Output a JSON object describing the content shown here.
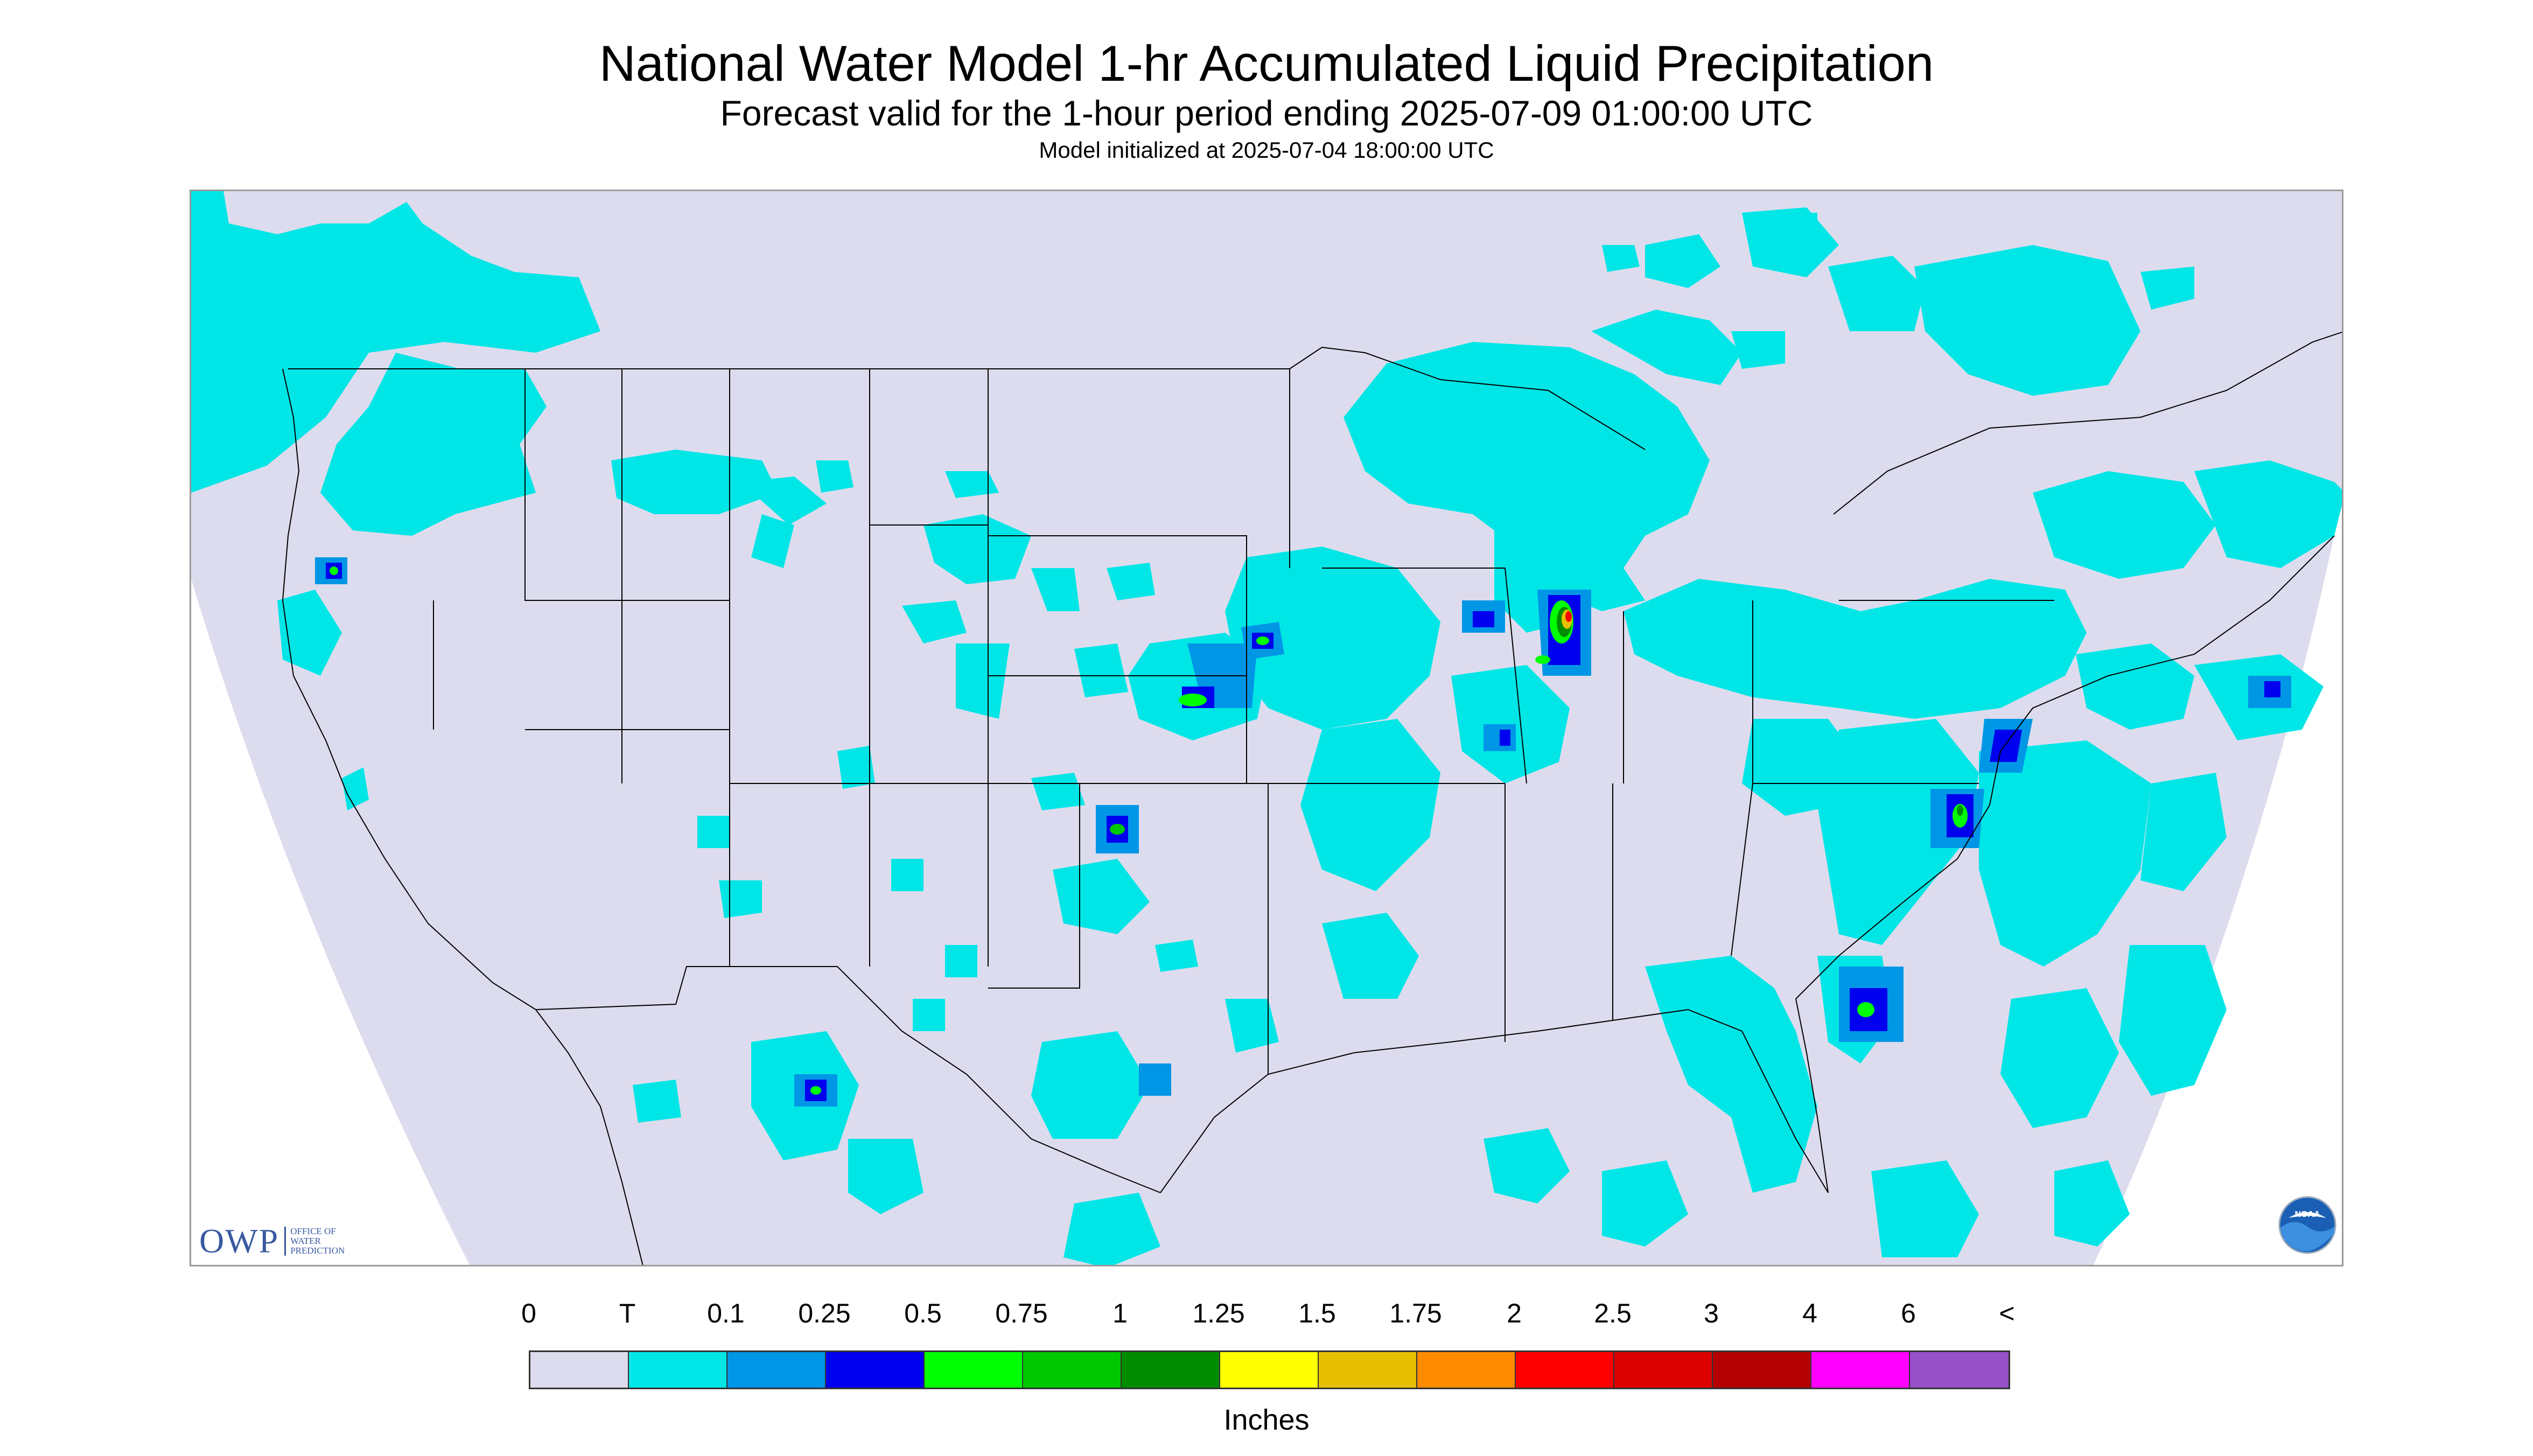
{
  "header": {
    "title": "National Water Model 1-hr Accumulated Liquid Precipitation",
    "subtitle": "Forecast valid for the 1-hour period ending 2025-07-09 01:00:00 UTC",
    "init": "Model initialized at 2025-07-04 18:00:00 UTC"
  },
  "logos": {
    "owp_big": "OWP",
    "owp_small_1": "Office of",
    "owp_small_2": "Water",
    "owp_small_3": "Prediction",
    "noaa": "NOAA"
  },
  "legend": {
    "labels": [
      "0",
      "T",
      "0.1",
      "0.25",
      "0.5",
      "0.75",
      "1",
      "1.25",
      "1.5",
      "1.75",
      "2",
      "2.5",
      "3",
      "4",
      "6",
      "<"
    ],
    "colors": [
      "#dcdcee",
      "#00e6e6",
      "#0096e6",
      "#0000ee",
      "#00ff00",
      "#00c800",
      "#008c00",
      "#ffff00",
      "#e6c000",
      "#ff8c00",
      "#ff0000",
      "#dc0000",
      "#b40000",
      "#ff00ff",
      "#9650c8"
    ],
    "units": "Inches"
  },
  "map": {
    "background_color": "#dcdcee",
    "outside_color": "#ffffff",
    "trace_color": "#00e6e6"
  }
}
